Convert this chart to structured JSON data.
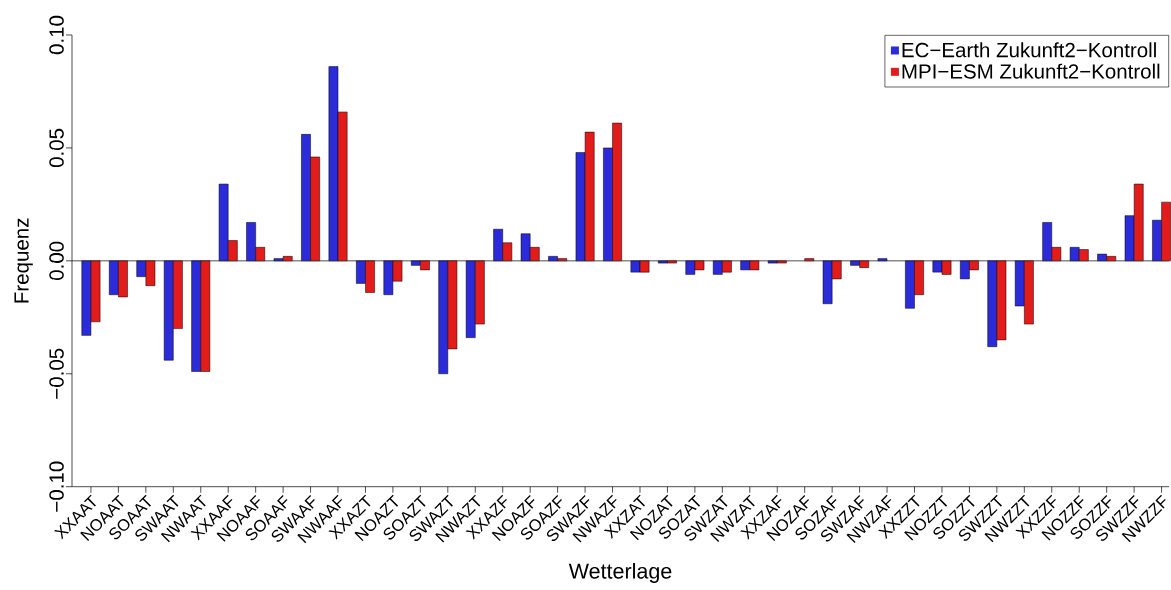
{
  "chart_data": {
    "type": "bar",
    "xlabel": "Wetterlage",
    "ylabel": "Frequenz",
    "categories": [
      "XXAAT",
      "NOAAT",
      "SOAAT",
      "SWAAT",
      "NWAAT",
      "XXAAF",
      "NOAAF",
      "SOAAF",
      "SWAAF",
      "NWAAF",
      "XXAZT",
      "NOAZT",
      "SOAZT",
      "SWAZT",
      "NWAZT",
      "XXAZF",
      "NOAZF",
      "SOAZF",
      "SWAZF",
      "NWAZF",
      "XXZAT",
      "NOZAT",
      "SOZAT",
      "SWZAT",
      "NWZAT",
      "XXZAF",
      "NOZAF",
      "SOZAF",
      "SWZAF",
      "NWZAF",
      "XXZZT",
      "NOZZT",
      "SOZZT",
      "SWZZT",
      "NWZZT",
      "XXZZF",
      "NOZZF",
      "SOZZF",
      "SWZZF",
      "NWZZF"
    ],
    "series": [
      {
        "name": "EC−Earth Zukunft2−Kontroll",
        "color": "#2b2bd9",
        "values": [
          -0.033,
          -0.015,
          -0.007,
          -0.044,
          -0.049,
          0.034,
          0.017,
          0.001,
          0.056,
          0.086,
          -0.01,
          -0.015,
          -0.002,
          -0.05,
          -0.034,
          0.014,
          0.012,
          0.002,
          0.048,
          0.05,
          -0.005,
          -0.001,
          -0.006,
          -0.006,
          -0.004,
          -0.001,
          0.0,
          -0.019,
          -0.002,
          0.001,
          -0.021,
          -0.005,
          -0.008,
          -0.038,
          -0.02,
          0.017,
          0.006,
          0.003,
          0.02,
          0.018
        ]
      },
      {
        "name": "MPI−ESM Zukunft2−Kontroll",
        "color": "#e21b1b",
        "values": [
          -0.027,
          -0.016,
          -0.011,
          -0.03,
          -0.049,
          0.009,
          0.006,
          0.002,
          0.046,
          0.066,
          -0.014,
          -0.009,
          -0.004,
          -0.039,
          -0.028,
          0.008,
          0.006,
          0.001,
          0.057,
          0.061,
          -0.005,
          -0.001,
          -0.004,
          -0.005,
          -0.004,
          -0.001,
          0.001,
          -0.008,
          -0.003,
          0.0,
          -0.015,
          -0.006,
          -0.004,
          -0.035,
          -0.028,
          0.006,
          0.005,
          0.002,
          0.034,
          0.026
        ]
      }
    ],
    "ylim": [
      -0.1,
      0.1
    ],
    "yticks": [
      {
        "value": -0.1,
        "label": "−0.10"
      },
      {
        "value": -0.05,
        "label": "−0.05"
      },
      {
        "value": 0,
        "label": "0.00"
      },
      {
        "value": 0.05,
        "label": "0.05"
      },
      {
        "value": 0.1,
        "label": "0.10"
      }
    ],
    "ref_lines": [
      {
        "axis": "y",
        "value": 0
      }
    ],
    "legend": "top right"
  }
}
